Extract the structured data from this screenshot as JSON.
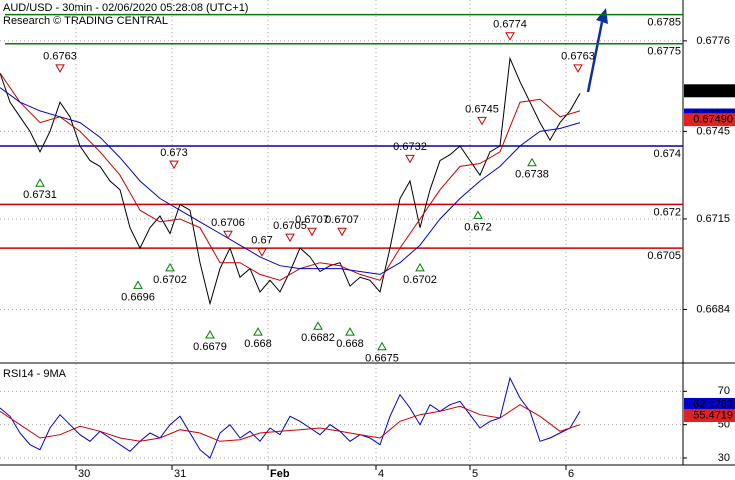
{
  "chart_data": [
    {
      "type": "line",
      "title": "AUD/USD - 30min - 02/06/2020 05:28:08 (UTC+1)",
      "subtitle": "Research © TRADING CENTRAL",
      "xlim": [
        0,
        341.5
      ],
      "ylim": [
        0.6666,
        0.679
      ],
      "yticks": [
        0.6776,
        0.6745,
        0.6715,
        0.6684
      ],
      "grid": true,
      "series": [
        {
          "color": "#000000",
          "x": [
            0,
            5,
            10,
            15,
            20,
            25,
            30,
            35,
            40,
            45,
            50,
            55,
            60,
            65,
            70,
            75,
            80,
            85,
            90,
            95,
            100,
            105,
            110,
            115,
            120,
            125,
            130,
            135,
            140,
            145,
            150,
            155,
            160,
            165,
            170,
            175,
            180,
            185,
            190,
            195,
            200,
            205,
            210,
            215,
            220,
            225,
            230,
            235,
            240,
            245,
            250,
            255,
            260,
            265,
            270,
            275,
            280,
            285,
            290
          ],
          "values": [
            0.6765,
            0.6755,
            0.675,
            0.6745,
            0.6738,
            0.6745,
            0.6755,
            0.675,
            0.674,
            0.6735,
            0.6733,
            0.6728,
            0.6725,
            0.6712,
            0.6705,
            0.6712,
            0.6716,
            0.671,
            0.672,
            0.6718,
            0.67,
            0.6686,
            0.6698,
            0.6705,
            0.6695,
            0.6698,
            0.669,
            0.6694,
            0.669,
            0.6697,
            0.6705,
            0.6702,
            0.6697,
            0.6699,
            0.67,
            0.6692,
            0.6695,
            0.6694,
            0.669,
            0.6705,
            0.6722,
            0.6728,
            0.6712,
            0.6725,
            0.6735,
            0.6737,
            0.674,
            0.6735,
            0.673,
            0.6738,
            0.674,
            0.677,
            0.6762,
            0.6755,
            0.6748,
            0.6742,
            0.6748,
            0.6752,
            0.6758
          ]
        },
        {
          "color": "#cc0000",
          "x": [
            0,
            10,
            20,
            30,
            40,
            50,
            60,
            70,
            80,
            90,
            100,
            110,
            120,
            130,
            140,
            150,
            160,
            170,
            180,
            190,
            200,
            210,
            220,
            230,
            240,
            250,
            260,
            270,
            280,
            290
          ],
          "values": [
            0.6765,
            0.6755,
            0.6748,
            0.675,
            0.6745,
            0.6738,
            0.673,
            0.6718,
            0.6714,
            0.6715,
            0.6712,
            0.67,
            0.67,
            0.6696,
            0.6694,
            0.6698,
            0.67,
            0.6699,
            0.6696,
            0.6694,
            0.6705,
            0.6715,
            0.6725,
            0.6733,
            0.6734,
            0.6738,
            0.6755,
            0.6756,
            0.675,
            0.6752
          ]
        },
        {
          "color": "#0000cc",
          "x": [
            0,
            10,
            20,
            30,
            40,
            50,
            60,
            70,
            80,
            90,
            100,
            110,
            120,
            130,
            140,
            150,
            160,
            170,
            180,
            190,
            200,
            210,
            220,
            230,
            240,
            250,
            260,
            270,
            280,
            290
          ],
          "values": [
            0.676,
            0.6755,
            0.6752,
            0.675,
            0.6748,
            0.6743,
            0.6736,
            0.6728,
            0.6722,
            0.6718,
            0.6714,
            0.671,
            0.6706,
            0.6702,
            0.6699,
            0.6698,
            0.6698,
            0.6698,
            0.6697,
            0.6696,
            0.67,
            0.6706,
            0.6715,
            0.6722,
            0.6728,
            0.6733,
            0.674,
            0.6745,
            0.6746,
            0.6748
          ]
        }
      ],
      "levels": [
        {
          "value": 0.6785,
          "color": "#008000"
        },
        {
          "value": 0.6775,
          "color": "#008000"
        },
        {
          "value": 0.674,
          "color": "#0000a0"
        },
        {
          "value": 0.672,
          "color": "#cc0000"
        },
        {
          "value": 0.6705,
          "color": "#cc0000"
        }
      ],
      "markers": [
        {
          "value": 0.67589,
          "color": "#000000"
        },
        {
          "value": 0.67506,
          "color": "#0000cc"
        },
        {
          "value": 0.6749,
          "label": "0.67490",
          "color": "#dd2222"
        }
      ],
      "pivots": [
        {
          "x": 30,
          "value": 0.6763,
          "kind": "high"
        },
        {
          "x": 87,
          "value": 0.673,
          "kind": "high"
        },
        {
          "x": 114,
          "value": 0.6706,
          "kind": "high"
        },
        {
          "x": 131,
          "value": 0.67,
          "kind": "high"
        },
        {
          "x": 145,
          "value": 0.6705,
          "kind": "high"
        },
        {
          "x": 156,
          "value": 0.6707,
          "kind": "high"
        },
        {
          "x": 171,
          "value": 0.6707,
          "kind": "high"
        },
        {
          "x": 205,
          "value": 0.6732,
          "kind": "high"
        },
        {
          "x": 241,
          "value": 0.6745,
          "kind": "high"
        },
        {
          "x": 255,
          "value": 0.6774,
          "kind": "high"
        },
        {
          "x": 289,
          "value": 0.6763,
          "kind": "high"
        },
        {
          "x": 20,
          "value": 0.6731,
          "kind": "low"
        },
        {
          "x": 69,
          "value": 0.6696,
          "kind": "low"
        },
        {
          "x": 85,
          "value": 0.6702,
          "kind": "low"
        },
        {
          "x": 105,
          "value": 0.6679,
          "kind": "low"
        },
        {
          "x": 129,
          "value": 0.668,
          "kind": "low"
        },
        {
          "x": 159,
          "value": 0.6682,
          "kind": "low"
        },
        {
          "x": 175,
          "value": 0.668,
          "kind": "low"
        },
        {
          "x": 191,
          "value": 0.6675,
          "kind": "low"
        },
        {
          "x": 210,
          "value": 0.6702,
          "kind": "low"
        },
        {
          "x": 239,
          "value": 0.672,
          "kind": "low"
        },
        {
          "x": 266,
          "value": 0.6738,
          "kind": "low"
        }
      ]
    },
    {
      "type": "line",
      "title": "RSI14 - 9MA",
      "xlim": [
        0,
        341.5
      ],
      "ylim": [
        25.8,
        86.4
      ],
      "yticks": [
        70,
        50,
        30
      ],
      "grid": true,
      "xticks": [
        {
          "value": 38,
          "label": "30"
        },
        {
          "value": 86,
          "label": "31"
        },
        {
          "value": 134,
          "label": "Feb"
        },
        {
          "value": 188,
          "label": "4"
        },
        {
          "value": 235,
          "label": "5"
        },
        {
          "value": 283,
          "label": "6"
        }
      ],
      "series": [
        {
          "color": "#0000cc",
          "x": [
            0,
            5,
            10,
            15,
            20,
            25,
            30,
            35,
            40,
            45,
            50,
            55,
            60,
            65,
            70,
            75,
            80,
            85,
            90,
            95,
            100,
            105,
            110,
            115,
            120,
            125,
            130,
            135,
            140,
            145,
            150,
            155,
            160,
            165,
            170,
            175,
            180,
            185,
            190,
            195,
            200,
            205,
            210,
            215,
            220,
            225,
            230,
            235,
            240,
            245,
            250,
            255,
            260,
            265,
            270,
            275,
            280,
            285,
            290
          ],
          "values": [
            60,
            55,
            45,
            38,
            35,
            48,
            56,
            50,
            44,
            40,
            46,
            42,
            38,
            34,
            40,
            45,
            42,
            50,
            55,
            45,
            35,
            30,
            45,
            50,
            42,
            46,
            40,
            48,
            44,
            55,
            52,
            48,
            44,
            50,
            46,
            40,
            44,
            42,
            38,
            55,
            68,
            60,
            50,
            62,
            58,
            62,
            64,
            56,
            48,
            52,
            54,
            78,
            66,
            58,
            40,
            42,
            45,
            48,
            58
          ]
        },
        {
          "color": "#cc0000",
          "x": [
            0,
            10,
            20,
            30,
            40,
            50,
            60,
            70,
            80,
            90,
            100,
            110,
            120,
            130,
            140,
            150,
            160,
            170,
            180,
            190,
            200,
            210,
            220,
            230,
            240,
            250,
            260,
            270,
            280,
            290
          ],
          "values": [
            58,
            50,
            42,
            44,
            49,
            46,
            42,
            40,
            42,
            47,
            45,
            40,
            41,
            45,
            46,
            47,
            48,
            46,
            44,
            42,
            52,
            56,
            58,
            61,
            56,
            54,
            62,
            55,
            46,
            50
          ]
        }
      ],
      "markers": [
        {
          "value": 62.1282,
          "color": "#0000cc"
        },
        {
          "value": 55.4719,
          "color": "#dd2222"
        }
      ]
    }
  ]
}
